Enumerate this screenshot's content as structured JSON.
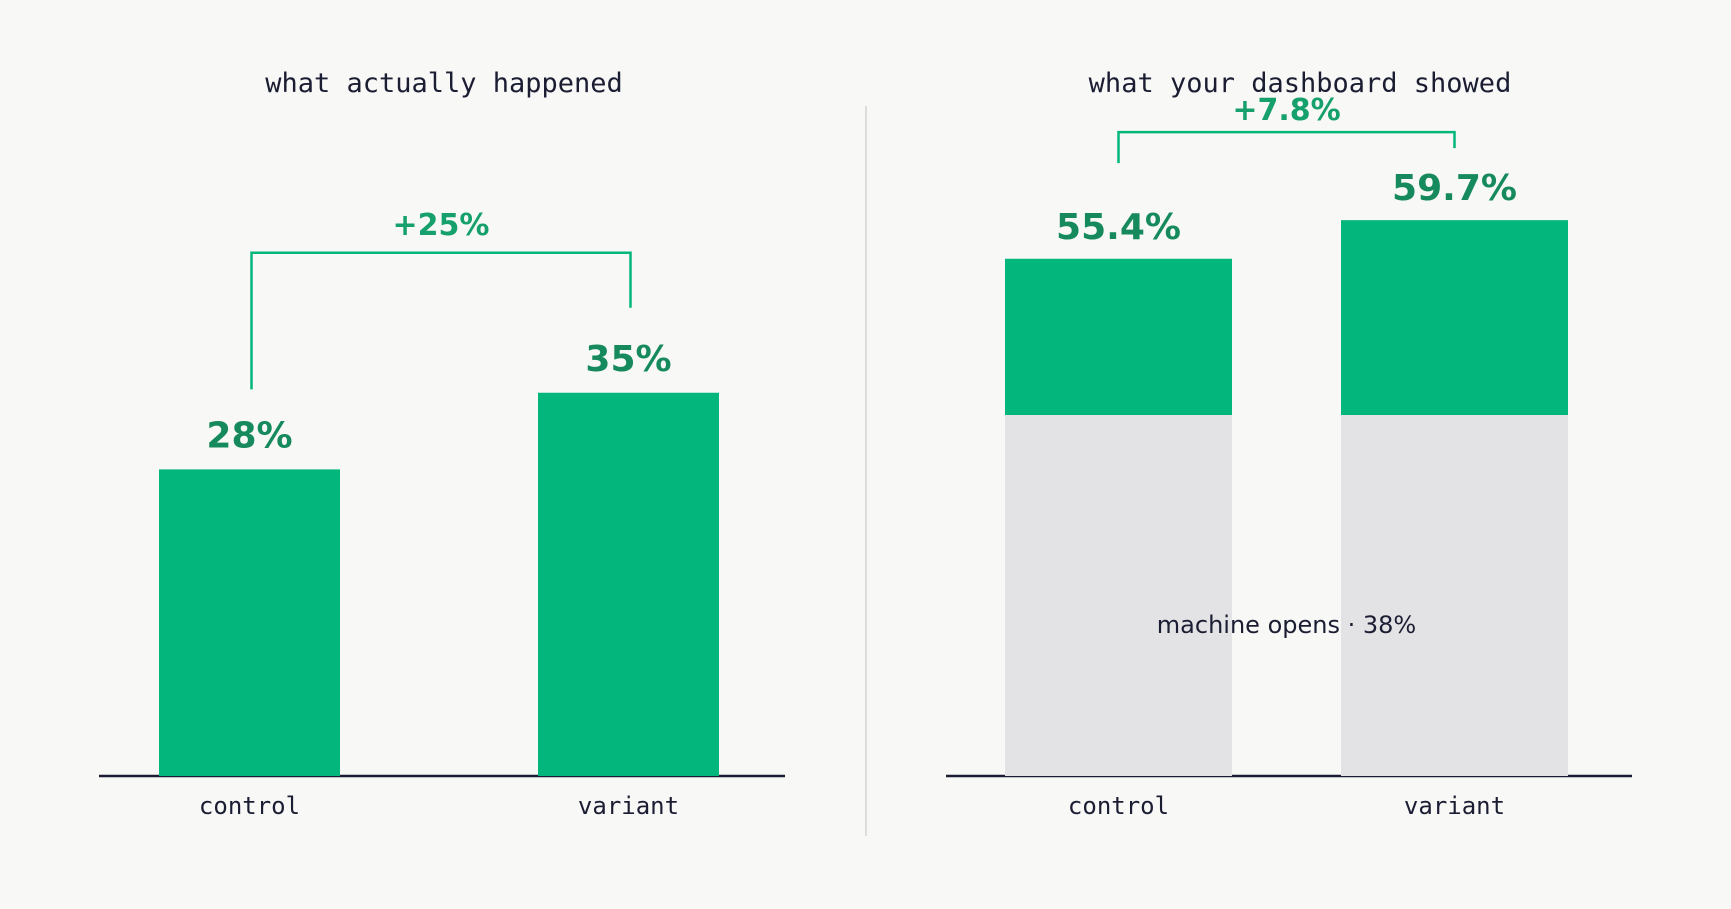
{
  "colors": {
    "accent": "#03b67b",
    "value_text": "#168a5c",
    "grey_segment": "#e3e3e5",
    "axis": "#1b1d33",
    "background": "#f8f8f6"
  },
  "chart_data": [
    {
      "type": "bar",
      "title": "what actually happened",
      "categories": [
        "control",
        "variant"
      ],
      "values": [
        28,
        35
      ],
      "value_labels": [
        "28%",
        "35%"
      ],
      "ylim": [
        0,
        60
      ],
      "grid": false,
      "delta_label": "+25%"
    },
    {
      "type": "bar",
      "stacked": true,
      "title": "what your dashboard showed",
      "categories": [
        "control",
        "variant"
      ],
      "series": [
        {
          "values": [
            38,
            38
          ]
        },
        {
          "values": [
            17.4,
            21.7
          ]
        }
      ],
      "totals": [
        55.4,
        59.7
      ],
      "value_labels": [
        "55.4%",
        "59.7%"
      ],
      "segment_label": "machine opens · 38%",
      "ylim": [
        0,
        60
      ],
      "grid": false,
      "delta_label": "+7.8%"
    }
  ]
}
